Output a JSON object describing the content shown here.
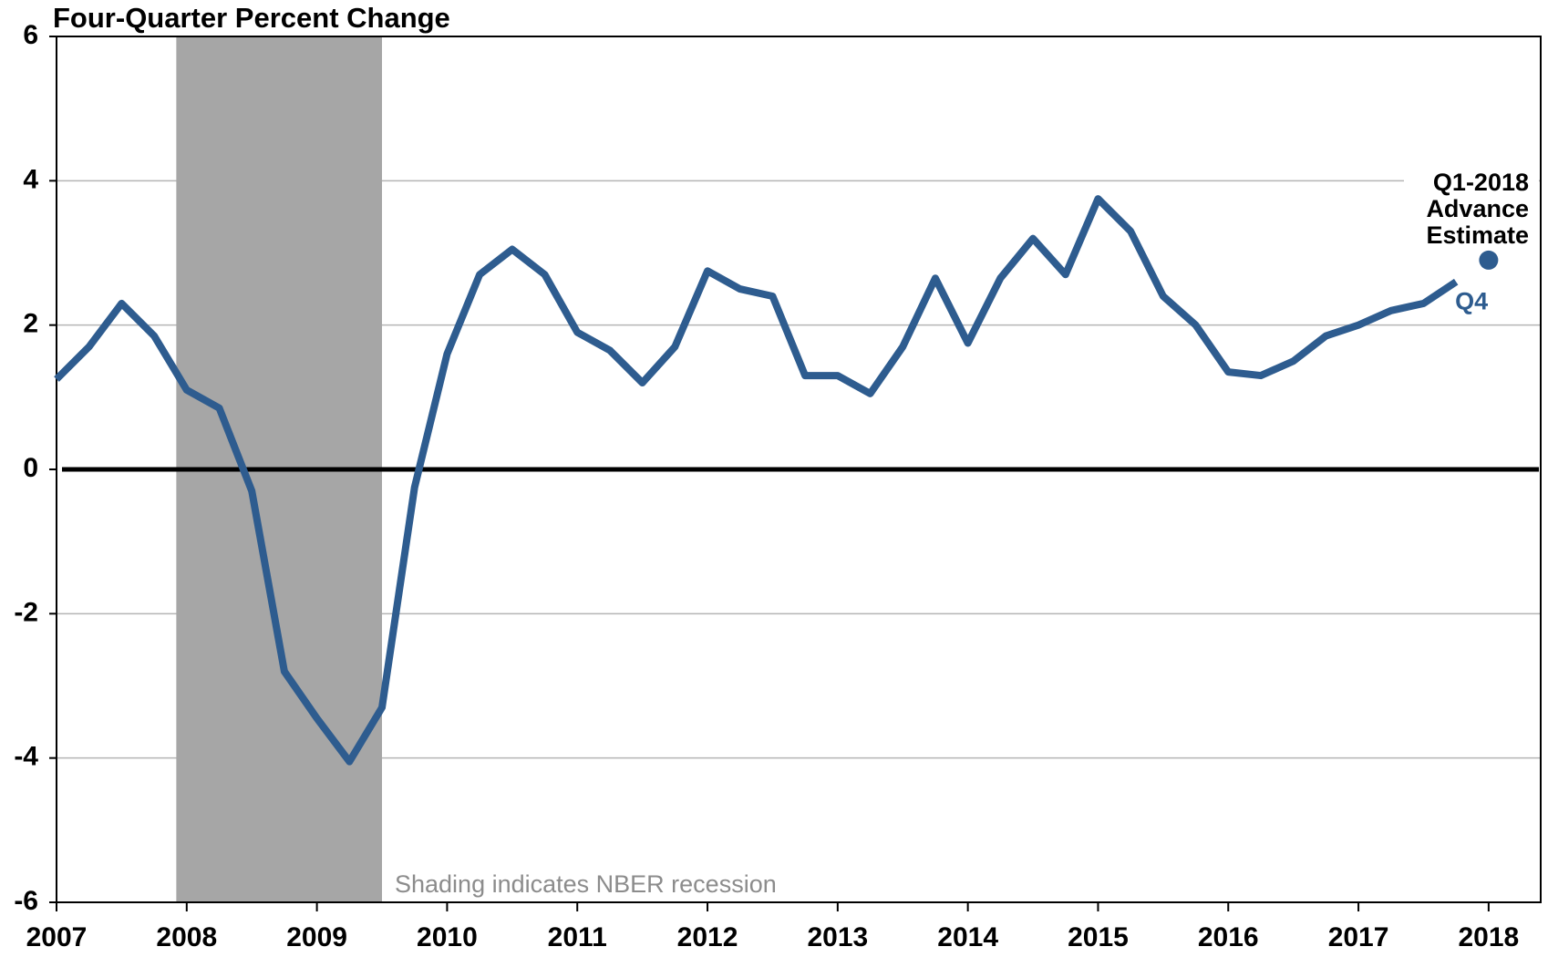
{
  "chart_data": {
    "type": "line",
    "title": "Four-Quarter Percent Change",
    "x": [
      2007,
      2007.25,
      2007.5,
      2007.75,
      2008,
      2008.25,
      2008.5,
      2008.75,
      2009,
      2009.25,
      2009.5,
      2009.75,
      2010,
      2010.25,
      2010.5,
      2010.75,
      2011,
      2011.25,
      2011.5,
      2011.75,
      2012,
      2012.25,
      2012.5,
      2012.75,
      2013,
      2013.25,
      2013.5,
      2013.75,
      2014,
      2014.25,
      2014.5,
      2014.75,
      2015,
      2015.25,
      2015.5,
      2015.75,
      2016,
      2016.25,
      2016.5,
      2016.75,
      2017,
      2017.25,
      2017.5,
      2017.75
    ],
    "series": [
      {
        "name": "Q4",
        "color": "#2e5c8f",
        "values": [
          1.25,
          1.7,
          2.3,
          1.85,
          1.1,
          0.85,
          -0.3,
          -2.8,
          -3.45,
          -4.05,
          -3.3,
          -0.25,
          1.6,
          2.7,
          3.05,
          2.7,
          1.9,
          1.65,
          1.2,
          1.7,
          2.75,
          2.5,
          2.4,
          1.3,
          1.3,
          1.05,
          1.7,
          2.65,
          1.75,
          2.65,
          3.2,
          2.7,
          3.75,
          3.3,
          2.4,
          2.0,
          1.35,
          1.3,
          1.5,
          1.85,
          2.0,
          2.2,
          2.3,
          2.6
        ]
      }
    ],
    "advance_estimate": {
      "x": 2018,
      "value": 2.9,
      "color": "#2e5c8f",
      "label": [
        "Q1-2018",
        "Advance",
        "Estimate"
      ]
    },
    "recession": {
      "start": 2007.92,
      "end": 2009.5,
      "color": "#a6a6a6",
      "note": "Shading indicates NBER recession"
    },
    "xlim": [
      2007,
      2018.4
    ],
    "xticks": [
      2007,
      2008,
      2009,
      2010,
      2011,
      2012,
      2013,
      2014,
      2015,
      2016,
      2017,
      2018
    ],
    "ylim": [
      -6,
      6
    ],
    "yticks": [
      -6,
      -4,
      -2,
      0,
      2,
      4,
      6
    ],
    "grid": true
  }
}
